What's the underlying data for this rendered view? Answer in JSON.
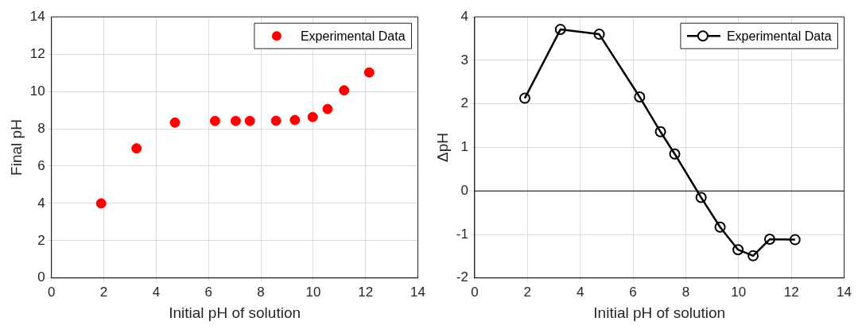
{
  "chart_data": [
    {
      "type": "scatter",
      "xlabel": "Initial pH of solution",
      "ylabel": "Final pH",
      "x": [
        1.9,
        3.25,
        4.72,
        6.25,
        7.04,
        7.58,
        8.58,
        9.3,
        9.98,
        10.55,
        11.18,
        12.14
      ],
      "series": [
        {
          "name": "Experimental Data",
          "color": "#ff0000",
          "values": [
            4.0,
            6.95,
            8.33,
            8.42,
            8.42,
            8.42,
            8.43,
            8.47,
            8.63,
            9.06,
            10.06,
            11.02
          ]
        }
      ],
      "xlim": [
        0,
        14
      ],
      "xticks": [
        0,
        2,
        4,
        6,
        8,
        10,
        12,
        14
      ],
      "ylim": [
        0,
        14
      ],
      "yticks": [
        0,
        2,
        4,
        6,
        8,
        10,
        12,
        14
      ],
      "grid": true,
      "legend": "top right",
      "marker": "circle"
    },
    {
      "type": "line",
      "xlabel": "Initial pH of solution",
      "ylabel": "ΔpH",
      "x": [
        1.9,
        3.25,
        4.72,
        6.25,
        7.04,
        7.58,
        8.58,
        9.3,
        9.98,
        10.55,
        11.18,
        12.14
      ],
      "series": [
        {
          "name": "Experimental Data",
          "color": "#000000",
          "values": [
            2.13,
            3.71,
            3.6,
            2.16,
            1.36,
            0.85,
            -0.15,
            -0.83,
            -1.35,
            -1.49,
            -1.11,
            -1.12
          ]
        }
      ],
      "xlim": [
        0,
        14
      ],
      "xticks": [
        0,
        2,
        4,
        6,
        8,
        10,
        12,
        14
      ],
      "ylim": [
        -2,
        4
      ],
      "yticks": [
        -2,
        -1,
        0,
        1,
        2,
        3,
        4
      ],
      "grid": true,
      "legend": "top right",
      "marker": "circle",
      "line_style": "solid",
      "ref_lines": [
        {
          "axis": "y",
          "value": 0,
          "color": "#000000"
        }
      ]
    }
  ]
}
